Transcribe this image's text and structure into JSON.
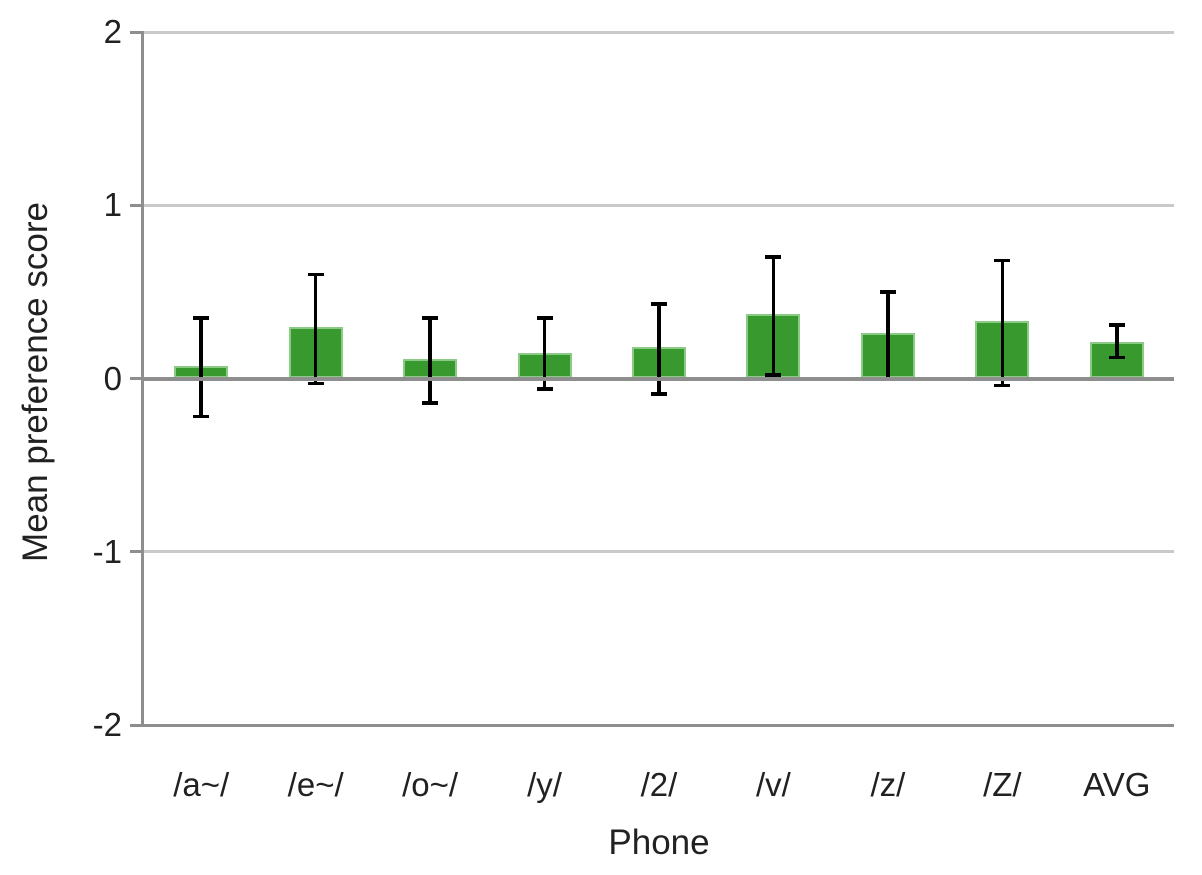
{
  "chart_data": {
    "type": "bar",
    "title": "",
    "xlabel": "Phone",
    "ylabel": "Mean preference score",
    "categories": [
      "/a~/",
      "/e~/",
      "/o~/",
      "/y/",
      "/2/",
      "/v/",
      "/z/",
      "/Z/",
      "AVG"
    ],
    "values": [
      0.07,
      0.3,
      0.11,
      0.15,
      0.18,
      0.37,
      0.26,
      0.33,
      0.21
    ],
    "error_whisker_top": [
      0.35,
      0.6,
      0.35,
      0.35,
      0.43,
      0.7,
      0.5,
      0.68,
      0.31
    ],
    "error_whisker_bottom": [
      -0.22,
      -0.03,
      -0.14,
      -0.06,
      -0.09,
      0.02,
      0.0,
      -0.04,
      0.12
    ],
    "ylim": [
      -2,
      2
    ],
    "yticks": [
      2,
      1,
      0,
      -1,
      -2
    ],
    "ytick_labels": [
      "2",
      "1",
      "0",
      "-1",
      "-2"
    ],
    "grid": "horizontal",
    "legend": "none",
    "colors": {
      "bar_fill": "#38992f",
      "bar_edge": "#8ccb85",
      "error_bar": "#000000",
      "gridline": "#c9c9c9",
      "axis_line": "#8e8e8e",
      "zero_line": "#8e8e8e",
      "text": "#212121",
      "background": "#ffffff"
    }
  }
}
